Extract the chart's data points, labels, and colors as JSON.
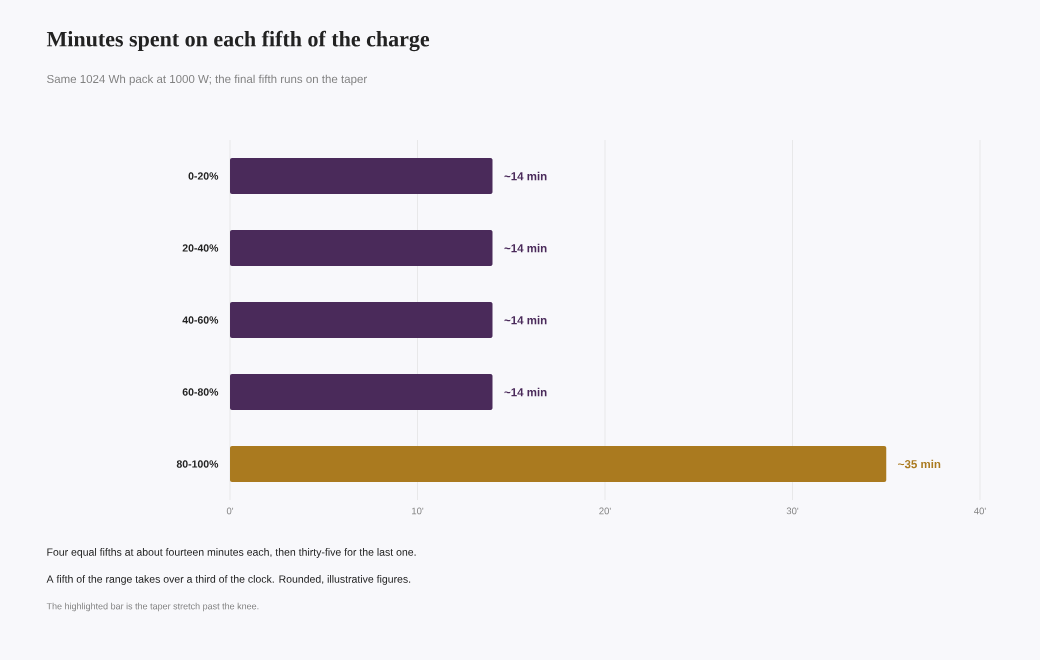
{
  "chart_data": {
    "type": "bar",
    "orientation": "horizontal",
    "title": "Minutes spent on each fifth of the charge",
    "subtitle": "Same 1024 Wh pack at 1000 W; the final fifth runs on the taper",
    "categories": [
      "0-20%",
      "20-40%",
      "40-60%",
      "60-80%",
      "80-100%"
    ],
    "values": [
      14,
      14,
      14,
      14,
      35
    ],
    "colors": [
      "#4a2a5a",
      "#4a2a5a",
      "#4a2a5a",
      "#4a2a5a",
      "#aa7a1f"
    ],
    "value_labels": [
      "~14 min",
      "~14 min",
      "~14 min",
      "~14 min",
      "~35 min"
    ],
    "xlim": [
      0,
      40
    ],
    "xticks": [
      {
        "value": 0,
        "label": "0'"
      },
      {
        "value": 10,
        "label": "10'"
      },
      {
        "value": 20,
        "label": "20'"
      },
      {
        "value": 30,
        "label": "30'"
      },
      {
        "value": 40,
        "label": "40'"
      }
    ],
    "grid": "x",
    "annotations": [
      "Four equal fifths at about fourteen minutes each, then thirty-five for the last one.",
      "A fifth of the range takes over a third of the clock. Rounded, illustrative figures.",
      "The highlighted bar is the taper stretch past the knee."
    ]
  }
}
